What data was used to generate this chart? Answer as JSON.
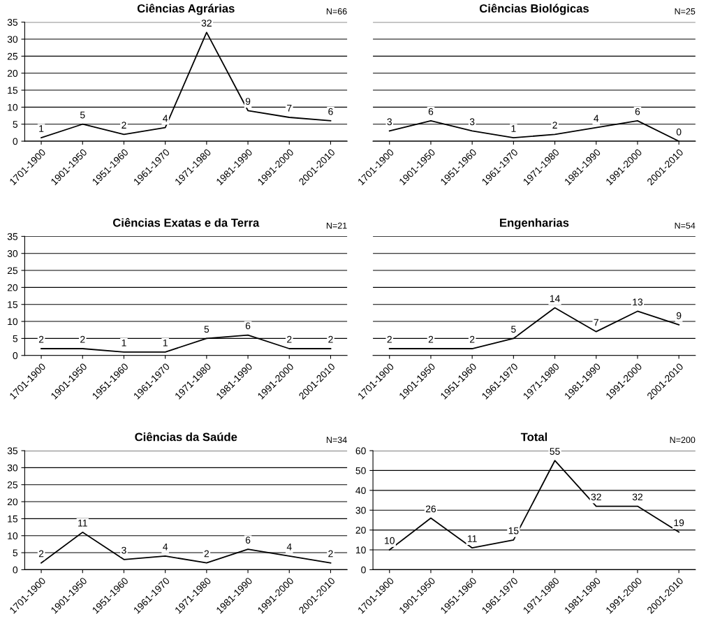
{
  "chart_data": [
    {
      "type": "line",
      "title": "Ciências Agrárias",
      "annotations": [
        "N=66"
      ],
      "categories": [
        "1701-1900",
        "1901-1950",
        "1951-1960",
        "1961-1970",
        "1971-1980",
        "1981-1990",
        "1991-2000",
        "2001-2010"
      ],
      "values": [
        1,
        5,
        2,
        4,
        32,
        9,
        7,
        6
      ],
      "color": "#000000",
      "ylim": [
        0,
        35
      ],
      "yticks": [
        0,
        5,
        10,
        15,
        20,
        25,
        30,
        35
      ],
      "grid": "y",
      "data_labels": true,
      "marker": "none",
      "line_style": "solid"
    },
    {
      "type": "line",
      "title": "Ciências Biológicas",
      "annotations": [
        "N=25"
      ],
      "categories": [
        "1701-1900",
        "1901-1950",
        "1951-1960",
        "1961-1970",
        "1971-1980",
        "1981-1990",
        "1991-2000",
        "2001-2010"
      ],
      "values": [
        3,
        6,
        3,
        1,
        2,
        4,
        6,
        0
      ],
      "color": "#000000",
      "ylim": [
        0,
        35
      ],
      "yticks": [
        0,
        5,
        10,
        15,
        20,
        25,
        30,
        35
      ],
      "grid": "y",
      "data_labels": true,
      "tick_labels": "x",
      "marker": "none",
      "line_style": "solid"
    },
    {
      "type": "line",
      "title": "Ciências Exatas e da Terra",
      "annotations": [
        "N=21"
      ],
      "categories": [
        "1701-1900",
        "1901-1950",
        "1951-1960",
        "1961-1970",
        "1971-1980",
        "1981-1990",
        "1991-2000",
        "2001-2010"
      ],
      "values": [
        2,
        2,
        1,
        1,
        5,
        6,
        2,
        2
      ],
      "color": "#000000",
      "ylim": [
        0,
        35
      ],
      "yticks": [
        0,
        5,
        10,
        15,
        20,
        25,
        30,
        35
      ],
      "grid": "y",
      "data_labels": true,
      "marker": "none",
      "line_style": "solid"
    },
    {
      "type": "line",
      "title": "Engenharias",
      "annotations": [
        "N=54"
      ],
      "categories": [
        "1701-1900",
        "1901-1950",
        "1951-1960",
        "1961-1970",
        "1971-1980",
        "1981-1990",
        "1991-2000",
        "2001-2010"
      ],
      "values": [
        2,
        2,
        2,
        5,
        14,
        7,
        13,
        9
      ],
      "color": "#000000",
      "ylim": [
        0,
        35
      ],
      "yticks": [
        0,
        5,
        10,
        15,
        20,
        25,
        30,
        35
      ],
      "grid": "y",
      "data_labels": true,
      "tick_labels": "x",
      "marker": "none",
      "line_style": "solid"
    },
    {
      "type": "line",
      "title": "Ciências da Saúde",
      "annotations": [
        "N=34"
      ],
      "categories": [
        "1701-1900",
        "1901-1950",
        "1951-1960",
        "1961-1970",
        "1971-1980",
        "1981-1990",
        "1991-2000",
        "2001-2010"
      ],
      "values": [
        2,
        11,
        3,
        4,
        2,
        6,
        4,
        2
      ],
      "color": "#000000",
      "ylim": [
        0,
        35
      ],
      "yticks": [
        0,
        5,
        10,
        15,
        20,
        25,
        30,
        35
      ],
      "grid": "y",
      "data_labels": true,
      "marker": "none",
      "line_style": "solid"
    },
    {
      "type": "line",
      "title": "Total",
      "annotations": [
        "N=200"
      ],
      "categories": [
        "1701-1900",
        "1901-1950",
        "1951-1960",
        "1961-1970",
        "1971-1980",
        "1981-1990",
        "1991-2000",
        "2001-2010"
      ],
      "values": [
        10,
        26,
        11,
        15,
        55,
        32,
        32,
        19
      ],
      "color": "#000000",
      "ylim": [
        0,
        60
      ],
      "yticks": [
        0,
        10,
        20,
        30,
        40,
        50,
        60
      ],
      "grid": "y",
      "data_labels": true,
      "marker": "none",
      "line_style": "solid"
    }
  ]
}
